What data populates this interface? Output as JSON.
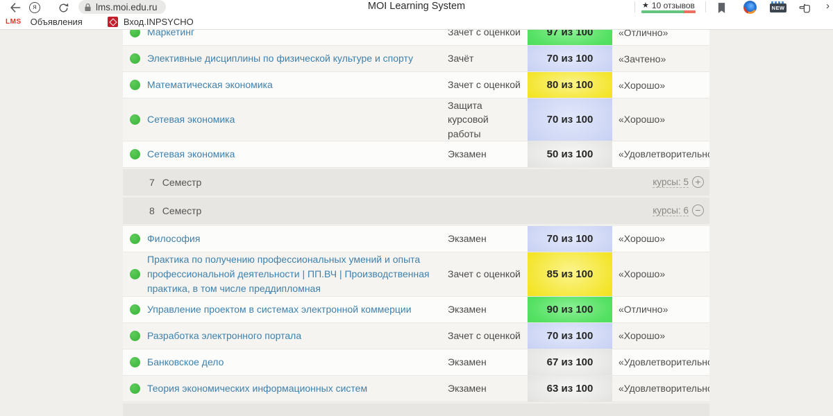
{
  "toolbar": {
    "url": "lms.moi.edu.ru",
    "page_title": "MOI Learning System",
    "star": "★",
    "reviews_label": "10 отзывов",
    "new_badge": "NEW",
    "profile_letter": "я",
    "chevron": "›"
  },
  "bookmarks_bar": {
    "lms_logo": "LMS",
    "items": [
      {
        "label": "Объявления"
      },
      {
        "label": "Вход.INPSYCHO"
      }
    ]
  },
  "table": {
    "score_colors": {
      "green": "#4fdf5e",
      "blue": "#c5cff2",
      "yellow": "#f2e21f",
      "gray": "#dfdfdd"
    },
    "expand_symbol": "+",
    "collapse_symbol": "−",
    "rows": [
      {
        "type": "course",
        "name": "Маркетинг",
        "exam": "Зачет с оценкой",
        "score": "97 из 100",
        "color": "green",
        "grade": "«Отлично»"
      },
      {
        "type": "course",
        "name": "Элективные дисциплины по физической культуре и спорту",
        "exam": "Зачёт",
        "score": "70 из 100",
        "color": "blue",
        "grade": "«Зачтено»"
      },
      {
        "type": "course",
        "name": "Математическая экономика",
        "exam": "Зачет с оценкой",
        "score": "80 из 100",
        "color": "yellow",
        "grade": "«Хорошо»"
      },
      {
        "type": "course",
        "name": "Сетевая экономика",
        "exam": "Защита курсовой работы",
        "score": "70 из 100",
        "color": "blue",
        "grade": "«Хорошо»"
      },
      {
        "type": "course",
        "name": "Сетевая экономика",
        "exam": "Экзамен",
        "score": "50 из 100",
        "color": "gray",
        "grade": "«Удовлетворительно»"
      },
      {
        "type": "semester",
        "number": "7",
        "label": "Семестр",
        "courses_label": "курсы: 5",
        "toggle": "plus"
      },
      {
        "type": "semester",
        "number": "8",
        "label": "Семестр",
        "courses_label": "курсы: 6",
        "toggle": "minus"
      },
      {
        "type": "course",
        "name": "Философия",
        "exam": "Экзамен",
        "score": "70 из 100",
        "color": "blue",
        "grade": "«Хорошо»"
      },
      {
        "type": "course",
        "name": "Практика по получению профессиональных умений и опыта профессиональной деятельности | ПП.ВЧ | Производственная практика, в том числе преддипломная",
        "exam": "Зачет с оценкой",
        "score": "85 из 100",
        "color": "yellow",
        "grade": "«Хорошо»"
      },
      {
        "type": "course",
        "name": "Управление проектом в системах электронной коммерции",
        "exam": "Экзамен",
        "score": "90 из 100",
        "color": "green",
        "grade": "«Отлично»"
      },
      {
        "type": "course",
        "name": "Разработка электронного портала",
        "exam": "Зачет с оценкой",
        "score": "70 из 100",
        "color": "blue",
        "grade": "«Хорошо»"
      },
      {
        "type": "course",
        "name": "Банковское дело",
        "exam": "Экзамен",
        "score": "67 из 100",
        "color": "gray",
        "grade": "«Удовлетворительно»"
      },
      {
        "type": "course",
        "name": "Теория экономических информационных систем",
        "exam": "Экзамен",
        "score": "63 из 100",
        "color": "gray",
        "grade": "«Удовлетворительно»"
      }
    ]
  }
}
